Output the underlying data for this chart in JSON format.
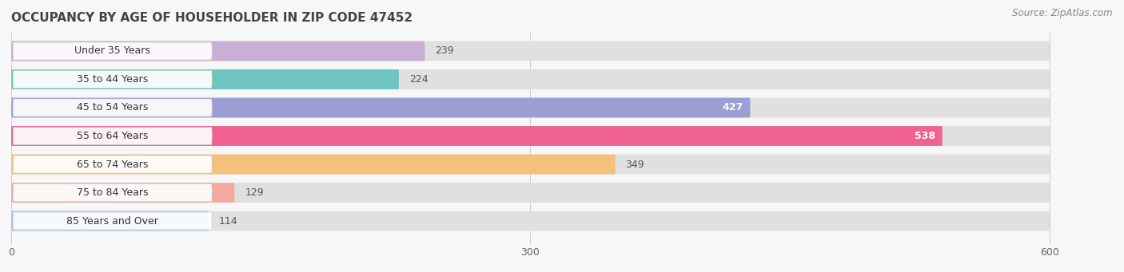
{
  "title": "OCCUPANCY BY AGE OF HOUSEHOLDER IN ZIP CODE 47452",
  "source": "Source: ZipAtlas.com",
  "categories": [
    "Under 35 Years",
    "35 to 44 Years",
    "45 to 54 Years",
    "55 to 64 Years",
    "65 to 74 Years",
    "75 to 84 Years",
    "85 Years and Over"
  ],
  "values": [
    239,
    224,
    427,
    538,
    349,
    129,
    114
  ],
  "bar_colors": [
    "#c9afd4",
    "#6ec4bf",
    "#9b9fd4",
    "#f06292",
    "#f5c07a",
    "#f4a9a0",
    "#a8c4e0"
  ],
  "bar_bg_color": "#e0e0e0",
  "xlim": [
    0,
    600
  ],
  "xticks": [
    0,
    300,
    600
  ],
  "title_fontsize": 11,
  "source_fontsize": 8.5,
  "label_fontsize": 9,
  "value_fontsize": 9,
  "bg_color": "#f7f7f7",
  "bar_bg_full": 600,
  "label_bg_color": "#ffffff"
}
